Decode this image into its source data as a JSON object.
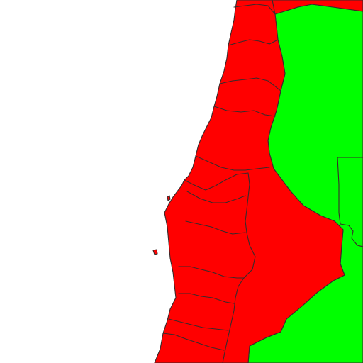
{
  "map": {
    "colors": {
      "background": "#ffffff",
      "highlighted_region": "#ff0000",
      "other_region": "#00ff00",
      "border": "#3a2a2a"
    },
    "regions": [
      {
        "name": "highlighted-coastal-region",
        "fill": "red"
      },
      {
        "name": "neighboring-region",
        "fill": "green"
      }
    ]
  }
}
